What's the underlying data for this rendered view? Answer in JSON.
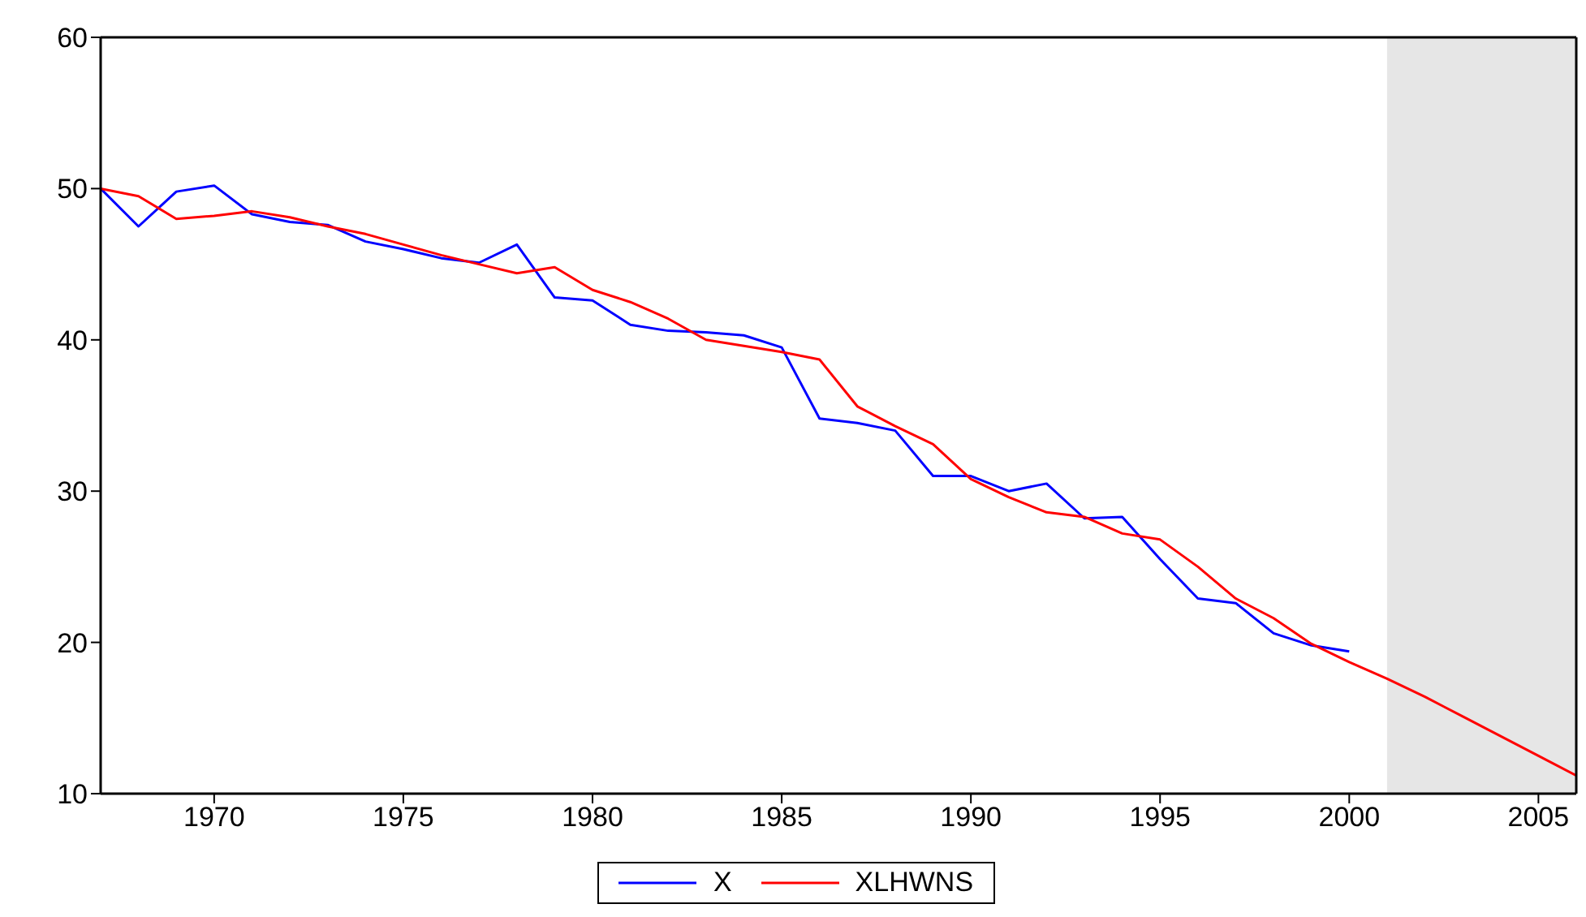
{
  "chart_data": {
    "type": "line",
    "x": [
      1967,
      1968,
      1969,
      1970,
      1971,
      1972,
      1973,
      1974,
      1975,
      1976,
      1977,
      1978,
      1979,
      1980,
      1981,
      1982,
      1983,
      1984,
      1985,
      1986,
      1987,
      1988,
      1989,
      1990,
      1991,
      1992,
      1993,
      1994,
      1995,
      1996,
      1997,
      1998,
      1999,
      2000,
      2001,
      2002,
      2003,
      2004,
      2005,
      2006
    ],
    "series": [
      {
        "name": "X",
        "color": "#0000ff",
        "values": [
          50.0,
          47.5,
          49.8,
          50.2,
          48.3,
          47.8,
          47.6,
          46.5,
          46.0,
          45.4,
          45.1,
          46.3,
          42.8,
          42.6,
          41.0,
          40.6,
          40.5,
          40.3,
          39.5,
          34.8,
          34.5,
          34.0,
          31.0,
          31.0,
          30.0,
          30.5,
          28.2,
          28.3,
          25.5,
          22.9,
          22.6,
          20.6,
          19.8,
          19.4,
          null,
          null,
          null,
          null,
          null,
          null
        ]
      },
      {
        "name": "XLHWNS",
        "color": "#ff0000",
        "values": [
          50.0,
          49.5,
          48.0,
          48.2,
          48.5,
          48.1,
          47.5,
          47.0,
          46.3,
          45.6,
          45.0,
          44.4,
          44.8,
          43.3,
          42.5,
          41.4,
          40.0,
          39.6,
          39.2,
          38.7,
          35.6,
          34.3,
          33.1,
          30.8,
          29.6,
          28.6,
          28.3,
          27.2,
          26.8,
          25.0,
          22.9,
          21.6,
          19.9,
          18.7,
          17.6,
          16.4,
          15.1,
          13.8,
          12.5,
          11.2
        ]
      }
    ],
    "xlim": [
      1967,
      2006
    ],
    "xticks": [
      1970,
      1975,
      1980,
      1985,
      1990,
      1995,
      2000,
      2005
    ],
    "ylim": [
      10,
      60
    ],
    "yticks": [
      10,
      20,
      30,
      40,
      50,
      60
    ],
    "bands": [
      {
        "axis": "x",
        "from": 2001,
        "to": 2006,
        "color": "#e6e6e6"
      }
    ],
    "grid": false,
    "legend": "bottom",
    "marker": "none",
    "line_style": "solid"
  }
}
